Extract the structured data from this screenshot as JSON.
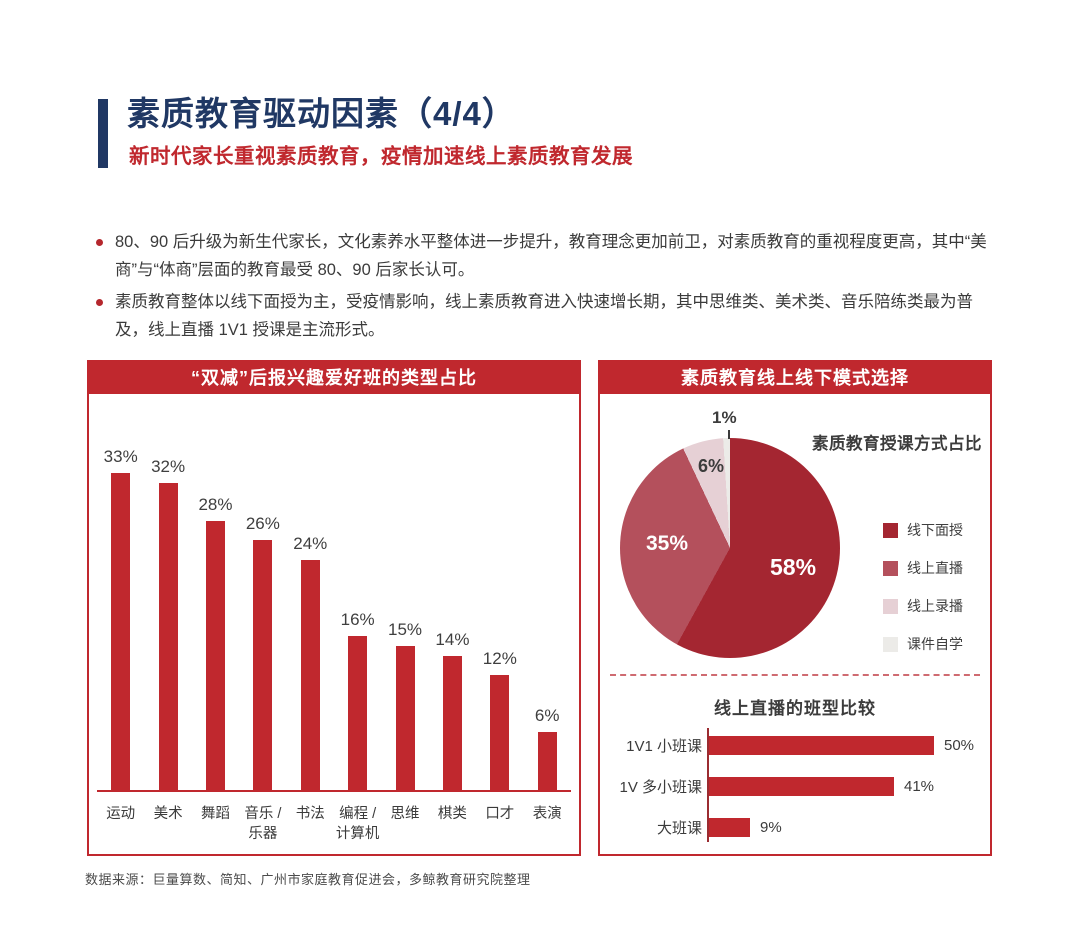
{
  "page": {
    "background": "#ffffff",
    "accent_red": "#c0282e",
    "accent_navy": "#203864"
  },
  "header": {
    "title": "素质教育驱动因素（4/4）",
    "subtitle": "新时代家长重视素质教育，疫情加速线上素质教育发展"
  },
  "bullets": [
    "80、90 后升级为新生代家长，文化素养水平整体进一步提升，教育理念更加前卫，对素质教育的重视程度更高，其中“美商”与“体商”层面的教育最受 80、90 后家长认可。",
    "素质教育整体以线下面授为主，受疫情影响，线上素质教育进入快速增长期，其中思维类、美术类、音乐陪练类最为普及，线上直播 1V1 授课是主流形式。"
  ],
  "left_panel": {
    "header": "“双减”后报兴趣爱好班的类型占比"
  },
  "right_panel": {
    "header": "素质教育线上线下模式选择",
    "pie_title": "素质教育授课方式占比",
    "hbar_title": "线上直播的班型比较"
  },
  "footer": {
    "source": "数据来源：巨量算数、简知、广州市家庭教育促进会，多鲸教育研究院整理"
  },
  "chart_data": [
    {
      "type": "bar",
      "title": "“双减”后报兴趣爱好班的类型占比",
      "categories": [
        "运动",
        "美术",
        "舞蹈",
        "音乐 /\n乐器",
        "书法",
        "编程 /\n计算机",
        "思维",
        "棋类",
        "口才",
        "表演"
      ],
      "values": [
        33,
        32,
        28,
        26,
        24,
        16,
        15,
        14,
        12,
        6
      ],
      "unit": "%",
      "xlabel": "",
      "ylabel": "",
      "ylim": [
        0,
        36
      ],
      "grid": false,
      "bar_color": "#c0282e",
      "value_labels": "above bars"
    },
    {
      "type": "pie",
      "title": "素质教育授课方式占比",
      "labels": [
        "线下面授",
        "线上直播",
        "线上录播",
        "课件自学"
      ],
      "values": [
        58,
        35,
        6,
        1
      ],
      "unit": "%",
      "colors": [
        "#a42631",
        "#b4505c",
        "#e6d0d5",
        "#ecebe8"
      ],
      "start": "12 o'clock, clockwise",
      "legend_position": "right"
    },
    {
      "type": "bar",
      "orientation": "horizontal",
      "title": "线上直播的班型比较",
      "categories": [
        "1V1 小班课",
        "1V 多小班课",
        "大班课"
      ],
      "values": [
        50,
        41,
        9
      ],
      "unit": "%",
      "xlim": [
        0,
        55
      ],
      "grid": false,
      "bar_color": "#c0282e",
      "value_labels": "right of bars"
    }
  ]
}
